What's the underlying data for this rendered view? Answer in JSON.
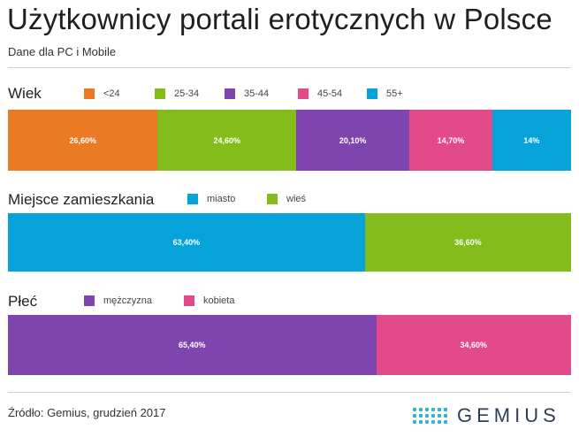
{
  "header": {
    "title": "Użytkownicy portali erotycznych w Polsce",
    "subtitle": "Dane dla PC i Mobile"
  },
  "chart_data": [
    {
      "type": "bar",
      "orientation": "horizontal-stacked-100",
      "title": "Wiek",
      "categories": [
        "<24",
        "25-34",
        "35-44",
        "45-54",
        "55+"
      ],
      "values": [
        26.6,
        24.6,
        20.1,
        14.7,
        14.0
      ],
      "labels": [
        "26,60%",
        "24,60%",
        "20,10%",
        "14,70%",
        "14%"
      ],
      "colors": [
        "#ea7a24",
        "#84bc1b",
        "#7d45ad",
        "#e34a8a",
        "#06a3db"
      ]
    },
    {
      "type": "bar",
      "orientation": "horizontal-stacked-100",
      "title": "Miejsce zamieszkania",
      "categories": [
        "miasto",
        "wieś"
      ],
      "values": [
        63.4,
        36.6
      ],
      "labels": [
        "63,40%",
        "36,60%"
      ],
      "colors": [
        "#06a3db",
        "#84bc1b"
      ]
    },
    {
      "type": "bar",
      "orientation": "horizontal-stacked-100",
      "title": "Płeć",
      "categories": [
        "mężczyzna",
        "kobieta"
      ],
      "values": [
        65.4,
        34.6
      ],
      "labels": [
        "65,40%",
        "34,60%"
      ],
      "colors": [
        "#7d45ad",
        "#e34a8a"
      ]
    }
  ],
  "footer": {
    "source": "Źródło: Gemius, grudzień 2017",
    "brand": "GEMIUS",
    "logo_dot_color": "#2fb4d6"
  }
}
